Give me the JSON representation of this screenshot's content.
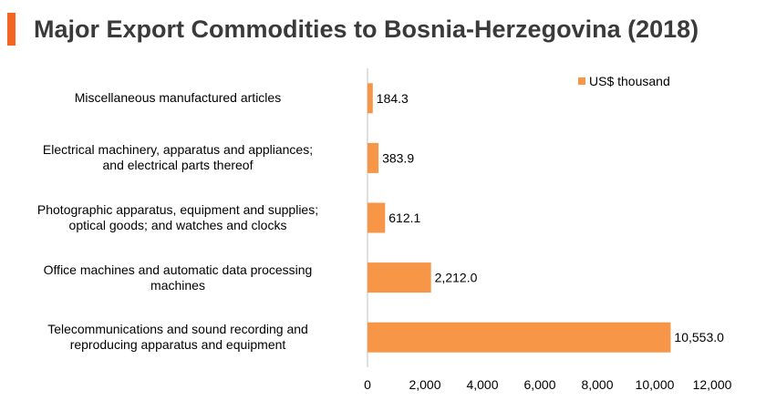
{
  "title": "Major Export Commodities to Bosnia-Herzegovina (2018)",
  "colors": {
    "accent": "#F26522",
    "bar": "#F79646",
    "axis": "#BFBFBF"
  },
  "chart_data": {
    "type": "bar",
    "orientation": "horizontal",
    "title": "Major Export Commodities to Bosnia-Herzegovina (2018)",
    "categories": [
      [
        "Miscellaneous manufactured articles"
      ],
      [
        "Electrical machinery, apparatus and appliances;",
        "and electrical parts thereof"
      ],
      [
        "Photographic apparatus, equipment and supplies;",
        "optical goods; and watches and clocks"
      ],
      [
        "Office machines and automatic data processing",
        "machines"
      ],
      [
        "Telecommunications and sound recording and",
        "reproducing apparatus and equipment"
      ]
    ],
    "series": [
      {
        "name": "US$ thousand",
        "values": [
          184.3,
          383.9,
          612.1,
          2212.0,
          10553.0
        ],
        "labels": [
          "184.3",
          "383.9",
          "612.1",
          "2,212.0",
          "10,553.0"
        ]
      }
    ],
    "xlim": [
      0,
      12000
    ],
    "xticks": [
      0,
      2000,
      4000,
      6000,
      8000,
      10000,
      12000
    ],
    "xtick_labels": [
      "0",
      "2,000",
      "4,000",
      "6,000",
      "8,000",
      "10,000",
      "12,000"
    ],
    "legend": "top-right",
    "grid": false
  }
}
